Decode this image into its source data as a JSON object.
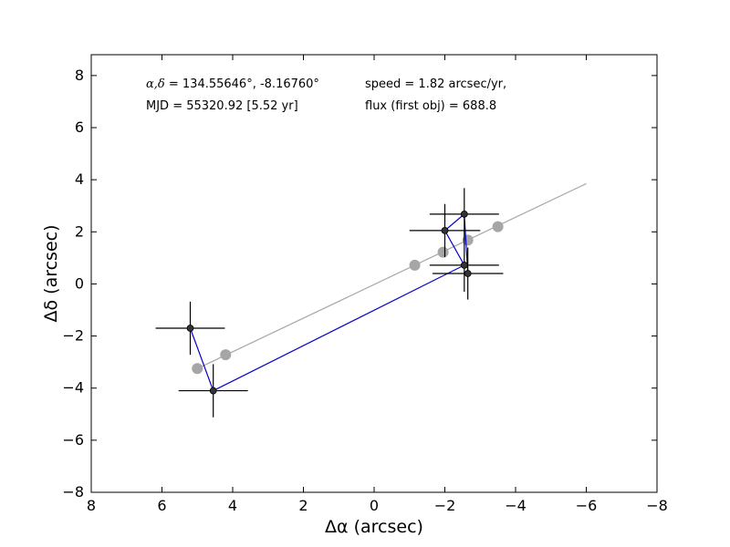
{
  "chart_data": {
    "type": "scatter",
    "xlabel": "Δα (arcsec)",
    "ylabel": "Δδ (arcsec)",
    "xlim": [
      8,
      -8
    ],
    "ylim": [
      -8,
      8.8
    ],
    "x_ticks": [
      8,
      6,
      4,
      2,
      0,
      -2,
      -4,
      -6,
      -8
    ],
    "x_tick_labels": [
      "8",
      "6",
      "4",
      "2",
      "0",
      "−2",
      "−4",
      "−6",
      "−8"
    ],
    "y_ticks": [
      8,
      6,
      4,
      2,
      0,
      -2,
      -4,
      -6,
      -8
    ],
    "y_tick_labels": [
      "8",
      "6",
      "4",
      "2",
      "0",
      "−2",
      "−4",
      "−6",
      "−8"
    ],
    "grid": false,
    "annotations": {
      "coords_symbol": "α,δ",
      "coords_value": " = 134.55646°, -8.16760°",
      "mjd": "MJD = 55320.92 [5.52 yr]",
      "speed": "speed = 1.82 arcsec/yr,",
      "flux": "flux (first obj) = 688.8"
    },
    "series": [
      {
        "kind": "measured",
        "color": "#0000cc",
        "marker_color": "#333333",
        "errbar_color": "#000000",
        "points": [
          {
            "x": 5.2,
            "y": -1.7,
            "xerr": 0.98,
            "yerr": 1.02
          },
          {
            "x": 4.55,
            "y": -4.1,
            "xerr": 0.98,
            "yerr": 1.02
          },
          {
            "x": -2.55,
            "y": 0.72,
            "xerr": 0.98,
            "yerr": 1.02
          },
          {
            "x": -2.0,
            "y": 2.05,
            "xerr": 1.0,
            "yerr": 1.02
          },
          {
            "x": -2.55,
            "y": 2.68,
            "xerr": 0.98,
            "yerr": 1.0
          },
          {
            "x": -2.65,
            "y": 0.4,
            "xerr": 1.0,
            "yerr": 1.0
          }
        ]
      },
      {
        "kind": "model",
        "color": "#a6a6a6",
        "line_start": {
          "x": 5.0,
          "y": -3.25
        },
        "line_end": {
          "x": -6.0,
          "y": 3.85
        },
        "points": [
          {
            "x": 5.0,
            "y": -3.25
          },
          {
            "x": 4.2,
            "y": -2.72
          },
          {
            "x": -1.15,
            "y": 0.72
          },
          {
            "x": -1.95,
            "y": 1.22
          },
          {
            "x": -2.65,
            "y": 1.68
          },
          {
            "x": -3.5,
            "y": 2.2
          }
        ]
      }
    ]
  }
}
